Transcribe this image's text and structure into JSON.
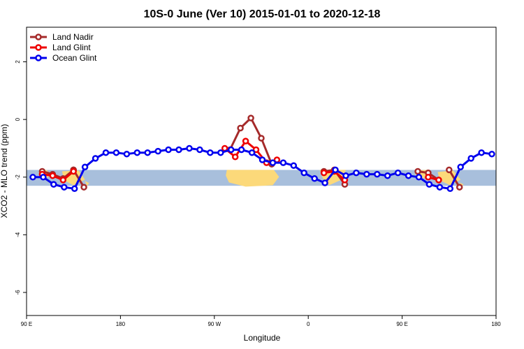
{
  "chart_data": {
    "type": "line",
    "title": "10S-0 June (Ver 10)   2015-01-01 to 2020-12-18",
    "xlabel": "Longitude",
    "ylabel": "XCO2 - MLO trend (ppm)",
    "xlim": [
      90,
      540
    ],
    "ylim": [
      -6.8,
      3.2
    ],
    "x_ticks": [
      {
        "value": 90,
        "label": "90 E"
      },
      {
        "value": 180,
        "label": "180"
      },
      {
        "value": 270,
        "label": "90 W"
      },
      {
        "value": 360,
        "label": "0"
      },
      {
        "value": 450,
        "label": "90 E"
      },
      {
        "value": 540,
        "label": "180"
      }
    ],
    "y_ticks": [
      {
        "value": -6,
        "label": "-6"
      },
      {
        "value": -4,
        "label": "-4"
      },
      {
        "value": -2,
        "label": "-2"
      },
      {
        "value": 0,
        "label": "0"
      },
      {
        "value": 2,
        "label": "2"
      }
    ],
    "band": {
      "y_min": -2.3,
      "y_max": -1.75,
      "color": "#a8bfdc",
      "land_color": "#fcd97a"
    },
    "legend_position": "top-left",
    "series": [
      {
        "name": "Land Nadir",
        "color": "#a52a2a",
        "segments": [
          {
            "x": [
              105,
              115,
              125,
              135
            ],
            "y": [
              -1.8,
              -1.9,
              -2.05,
              -1.75
            ]
          },
          {
            "x": [
              135,
              145
            ],
            "y": [
              -1.75,
              -2.35
            ]
          },
          {
            "x": [
              285,
              295,
              305,
              315,
              325
            ],
            "y": [
              -1.05,
              -0.3,
              0.05,
              -0.65,
              -1.55
            ]
          },
          {
            "x": [
              375,
              385,
              395
            ],
            "y": [
              -1.8,
              -1.75,
              -2.25
            ]
          },
          {
            "x": [
              465,
              475,
              485
            ],
            "y": [
              -1.8,
              -1.85,
              -2.1
            ]
          },
          {
            "x": [
              495,
              505
            ],
            "y": [
              -1.75,
              -2.35
            ]
          }
        ]
      },
      {
        "name": "Land Glint",
        "color": "#ee0000",
        "segments": [
          {
            "x": [
              105,
              115,
              125,
              135
            ],
            "y": [
              -1.9,
              -1.95,
              -2.1,
              -1.8
            ]
          },
          {
            "x": [
              280,
              290,
              300,
              310,
              320,
              330
            ],
            "y": [
              -1.0,
              -1.3,
              -0.75,
              -1.05,
              -1.5,
              -1.4
            ]
          },
          {
            "x": [
              375,
              385,
              395
            ],
            "y": [
              -1.85,
              -1.8,
              -2.1
            ]
          },
          {
            "x": [
              475,
              485
            ],
            "y": [
              -2.0,
              -2.1
            ]
          }
        ]
      },
      {
        "name": "Ocean Glint",
        "color": "#0000ee",
        "segments": [
          {
            "x": [
              96,
              106,
              116,
              126,
              136,
              146,
              156,
              166,
              176,
              186,
              196,
              206,
              216,
              226,
              236,
              246,
              256,
              266,
              276,
              286,
              296,
              306,
              316,
              326,
              336,
              346,
              356,
              366,
              376,
              386,
              396,
              406,
              416,
              426,
              436,
              446,
              456,
              466,
              476,
              486,
              496,
              506,
              516,
              526,
              536
            ],
            "y": [
              -2.0,
              -2.0,
              -2.25,
              -2.35,
              -2.4,
              -1.65,
              -1.35,
              -1.15,
              -1.15,
              -1.2,
              -1.15,
              -1.15,
              -1.1,
              -1.05,
              -1.05,
              -1.0,
              -1.05,
              -1.15,
              -1.15,
              -1.05,
              -1.05,
              -1.15,
              -1.4,
              -1.5,
              -1.5,
              -1.6,
              -1.85,
              -2.05,
              -2.2,
              -1.75,
              -1.95,
              -1.85,
              -1.9,
              -1.9,
              -1.95,
              -1.85,
              -1.95,
              -2.0,
              -2.25,
              -2.35,
              -2.4,
              -1.65,
              -1.35,
              -1.15,
              -1.2
            ]
          }
        ]
      }
    ]
  }
}
